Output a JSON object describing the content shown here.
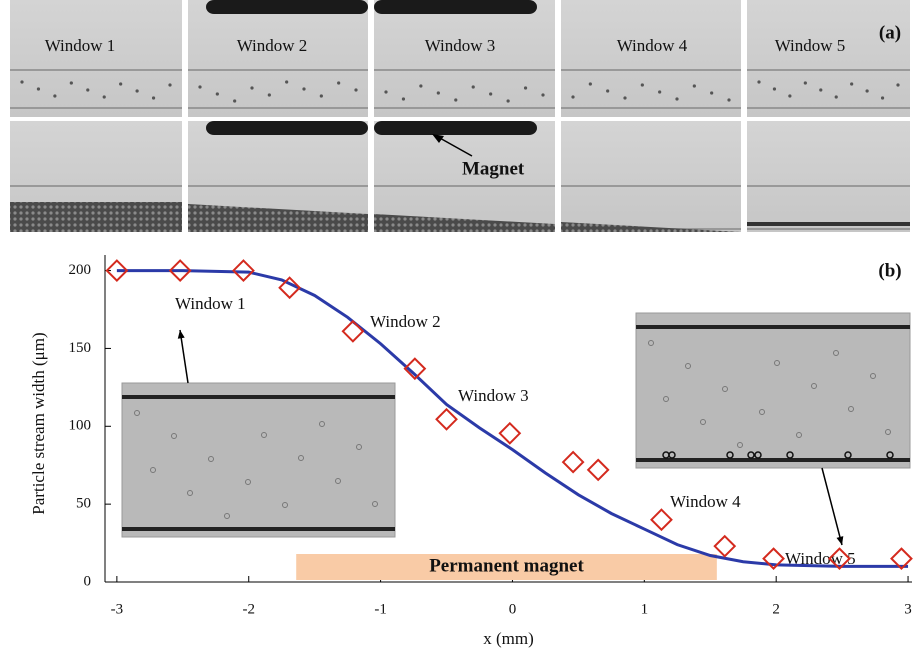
{
  "panel_a": {
    "label": "(a)",
    "windows": [
      "Window 1",
      "Window 2",
      "Window 3",
      "Window 4",
      "Window 5"
    ],
    "annotation": "Magnet"
  },
  "chart_data": {
    "type": "scatter",
    "label": "(b)",
    "xlabel": "x (mm)",
    "ylabel": "Particle stream width (μm)",
    "xlim": [
      -3.09,
      3.03
    ],
    "ylim": [
      0,
      210
    ],
    "xticks": [
      -3,
      -2,
      -1,
      0,
      1,
      2,
      3
    ],
    "yticks": [
      0,
      50,
      100,
      150,
      200
    ],
    "annotations": [
      "Window 1",
      "Window 2",
      "Window 3",
      "Window 4",
      "Window 5"
    ],
    "magnet": {
      "label": "Permanent magnet",
      "x": [
        -1.64,
        1.55
      ],
      "color": "#f9cba6"
    },
    "series": [
      {
        "kind": "line",
        "color": "#2b3aa8",
        "x": [
          -3,
          -2.5,
          -2,
          -1.75,
          -1.5,
          -1.25,
          -1,
          -0.75,
          -0.5,
          -0.25,
          0,
          0.25,
          0.5,
          0.75,
          1,
          1.25,
          1.5,
          1.75,
          2,
          2.5,
          3
        ],
        "values": [
          200,
          200,
          199,
          194,
          184,
          170,
          153,
          134,
          114,
          99,
          85,
          70,
          56,
          44,
          34,
          24,
          17,
          13,
          11,
          10,
          10
        ]
      },
      {
        "kind": "diamond",
        "color": "#d42a1e",
        "x": [
          -3,
          -2.52,
          -2.04,
          -1.69,
          -1.21,
          -0.74,
          -0.5,
          -0.02,
          0.46,
          0.65,
          1.13,
          1.61,
          1.98,
          2.48,
          2.95
        ],
        "values": [
          200,
          200,
          200,
          189,
          161,
          137,
          104.5,
          95.5,
          77,
          72,
          40,
          23,
          15,
          15,
          15
        ]
      }
    ]
  }
}
